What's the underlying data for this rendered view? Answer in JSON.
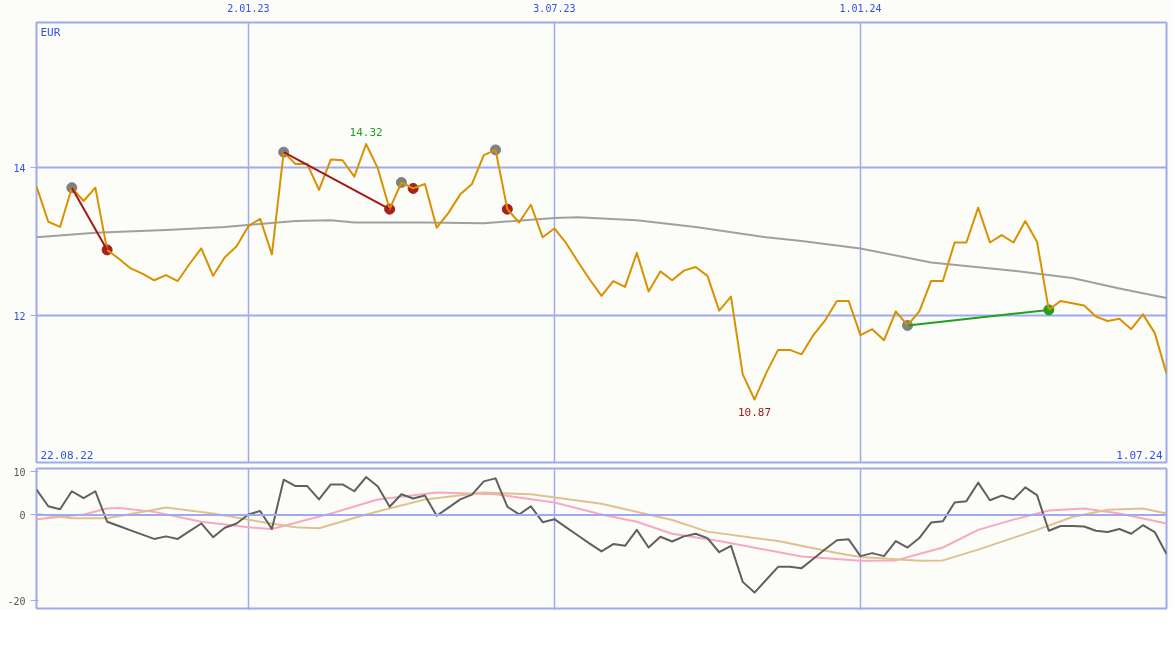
{
  "chart_data": [
    {
      "type": "line",
      "xlim": [
        "2022-08-29",
        "2024-07-01"
      ],
      "ylim": [
        10.02,
        15.96
      ],
      "xticks": [
        {
          "value": "2023-01-02",
          "label": "2.01.23"
        },
        {
          "value": "2023-07-03",
          "label": "3.07.23"
        },
        {
          "value": "2024-01-01",
          "label": "1.01.24"
        }
      ],
      "yticks": [
        14,
        12
      ],
      "grid": true,
      "x": [
        "2022-08-29",
        "2022-09-05",
        "2022-09-12",
        "2022-09-19",
        "2022-09-26",
        "2022-10-03",
        "2022-10-10",
        "2022-10-17",
        "2022-10-24",
        "2022-10-31",
        "2022-11-07",
        "2022-11-14",
        "2022-11-21",
        "2022-11-28",
        "2022-12-05",
        "2022-12-12",
        "2022-12-19",
        "2022-12-26",
        "2023-01-02",
        "2023-01-09",
        "2023-01-16",
        "2023-01-23",
        "2023-01-30",
        "2023-02-06",
        "2023-02-13",
        "2023-02-20",
        "2023-02-27",
        "2023-03-06",
        "2023-03-13",
        "2023-03-20",
        "2023-03-27",
        "2023-04-03",
        "2023-04-10",
        "2023-04-17",
        "2023-04-24",
        "2023-05-01",
        "2023-05-08",
        "2023-05-15",
        "2023-05-22",
        "2023-05-29",
        "2023-06-05",
        "2023-06-12",
        "2023-06-19",
        "2023-06-26",
        "2023-07-03",
        "2023-07-10",
        "2023-07-17",
        "2023-07-24",
        "2023-07-31",
        "2023-08-07",
        "2023-08-14",
        "2023-08-21",
        "2023-08-28",
        "2023-09-04",
        "2023-09-11",
        "2023-09-18",
        "2023-09-25",
        "2023-10-02",
        "2023-10-09",
        "2023-10-16",
        "2023-10-23",
        "2023-10-30",
        "2023-11-06",
        "2023-11-13",
        "2023-11-20",
        "2023-11-27",
        "2023-12-04",
        "2023-12-11",
        "2023-12-18",
        "2023-12-25",
        "2024-01-01",
        "2024-01-08",
        "2024-01-15",
        "2024-01-22",
        "2024-01-29",
        "2024-02-05",
        "2024-02-12",
        "2024-02-19",
        "2024-02-26",
        "2024-03-04",
        "2024-03-11",
        "2024-03-18",
        "2024-03-25",
        "2024-04-01",
        "2024-04-08",
        "2024-04-15",
        "2024-04-22",
        "2024-04-29",
        "2024-05-06",
        "2024-05-13",
        "2024-05-20",
        "2024-05-27",
        "2024-06-03",
        "2024-06-10",
        "2024-06-17",
        "2024-06-24",
        "2024-07-01"
      ],
      "series": [
        {
          "color": "#a0a0a0",
          "x": [
            "2022-08-29",
            "2022-10-03",
            "2022-11-14",
            "2022-12-19",
            "2023-01-30",
            "2023-02-20",
            "2023-03-06",
            "2023-04-17",
            "2023-05-22",
            "2023-07-03",
            "2023-07-17",
            "2023-08-21",
            "2023-09-25",
            "2023-11-06",
            "2023-11-27",
            "2024-01-01",
            "2024-02-12",
            "2024-04-01",
            "2024-05-06",
            "2024-06-03",
            "2024-07-01"
          ],
          "values": [
            13.06,
            13.12,
            13.16,
            13.2,
            13.28,
            13.29,
            13.26,
            13.26,
            13.25,
            13.32,
            13.33,
            13.29,
            13.2,
            13.06,
            13.01,
            12.91,
            12.72,
            12.61,
            12.51,
            12.37,
            12.24
          ]
        },
        {
          "color": "#d99100",
          "values": [
            13.75,
            13.27,
            13.2,
            13.73,
            13.55,
            13.73,
            12.89,
            12.77,
            12.64,
            12.57,
            12.48,
            12.55,
            12.47,
            12.7,
            12.91,
            12.54,
            12.79,
            12.94,
            13.21,
            13.31,
            12.83,
            14.21,
            14.05,
            14.05,
            13.7,
            14.11,
            14.1,
            13.88,
            14.32,
            13.99,
            13.44,
            13.8,
            13.72,
            13.78,
            13.19,
            13.39,
            13.64,
            13.78,
            14.17,
            14.24,
            13.44,
            13.26,
            13.5,
            13.06,
            13.18,
            12.98,
            12.73,
            12.49,
            12.27,
            12.47,
            12.39,
            12.85,
            12.33,
            12.6,
            12.48,
            12.61,
            12.66,
            12.54,
            12.07,
            12.26,
            11.21,
            10.87,
            11.23,
            11.54,
            11.54,
            11.48,
            11.74,
            11.94,
            12.2,
            12.2,
            11.74,
            11.82,
            11.67,
            12.06,
            11.87,
            12.06,
            12.47,
            12.47,
            12.99,
            12.99,
            13.46,
            12.99,
            13.09,
            12.99,
            13.28,
            13.0,
            12.08,
            12.2,
            12.17,
            12.14,
            11.99,
            11.93,
            11.96,
            11.82,
            12.02,
            11.77,
            11.22
          ]
        },
        {
          "color": "#a01818",
          "x": [
            "2022-09-19",
            "2022-10-10"
          ],
          "values": [
            13.73,
            12.89
          ]
        },
        {
          "color": "#a01818",
          "x": [
            "2023-01-23",
            "2023-03-27"
          ],
          "values": [
            14.21,
            13.44
          ]
        },
        {
          "color": "#20a020",
          "x": [
            "2024-01-29",
            "2024-04-22"
          ],
          "values": [
            11.87,
            12.08
          ]
        },
        {
          "type": "scatter",
          "marker": "circle",
          "color": "#808080",
          "x": [
            "2022-09-19",
            "2023-01-23",
            "2023-04-03",
            "2023-05-29",
            "2024-01-29"
          ],
          "values": [
            13.73,
            14.21,
            13.8,
            14.24,
            11.87
          ]
        },
        {
          "type": "scatter",
          "marker": "circle",
          "color": "#a52020",
          "x": [
            "2022-10-10",
            "2023-03-27",
            "2023-04-10",
            "2023-06-05"
          ],
          "values": [
            12.89,
            13.44,
            13.72,
            13.44
          ]
        },
        {
          "type": "scatter",
          "marker": "circle",
          "color": "#20a020",
          "x": [
            "2024-04-22"
          ],
          "values": [
            12.08
          ]
        }
      ],
      "annotations": [
        "EUR",
        "22.08.22",
        "1.07.24",
        {
          "text": "14.32",
          "x": "2023-03-13",
          "y": 14.32
        },
        {
          "text": "10.87",
          "x": "2023-10-30",
          "y": 10.87
        }
      ]
    },
    {
      "type": "line",
      "xlim": [
        "2022-08-29",
        "2024-07-01"
      ],
      "ylim": [
        -21.8,
        10.8
      ],
      "xticks": [
        {
          "value": "2023-01-02",
          "label": null
        },
        {
          "value": "2023-07-03",
          "label": null
        },
        {
          "value": "2024-01-01",
          "label": null
        }
      ],
      "yticks": [
        10,
        0,
        -20
      ],
      "grid": "x",
      "tick_labels": "y",
      "ref_lines": [
        {
          "axis": "y",
          "value": 0,
          "color": "#a0aaf0"
        }
      ],
      "x": [
        "2022-08-29",
        "2022-09-05",
        "2022-09-12",
        "2022-09-19",
        "2022-09-26",
        "2022-10-03",
        "2022-10-10",
        "2022-10-17",
        "2022-10-24",
        "2022-10-31",
        "2022-11-07",
        "2022-11-14",
        "2022-11-21",
        "2022-11-28",
        "2022-12-05",
        "2022-12-12",
        "2022-12-19",
        "2022-12-26",
        "2023-01-02",
        "2023-01-09",
        "2023-01-16",
        "2023-01-23",
        "2023-01-30",
        "2023-02-06",
        "2023-02-13",
        "2023-02-20",
        "2023-02-27",
        "2023-03-06",
        "2023-03-13",
        "2023-03-20",
        "2023-03-27",
        "2023-04-03",
        "2023-04-10",
        "2023-04-17",
        "2023-04-24",
        "2023-05-01",
        "2023-05-08",
        "2023-05-15",
        "2023-05-22",
        "2023-05-29",
        "2023-06-05",
        "2023-06-12",
        "2023-06-19",
        "2023-06-26",
        "2023-07-03",
        "2023-07-10",
        "2023-07-17",
        "2023-07-24",
        "2023-07-31",
        "2023-08-07",
        "2023-08-14",
        "2023-08-21",
        "2023-08-28",
        "2023-09-04",
        "2023-09-11",
        "2023-09-18",
        "2023-09-25",
        "2023-10-02",
        "2023-10-09",
        "2023-10-16",
        "2023-10-23",
        "2023-10-30",
        "2023-11-06",
        "2023-11-13",
        "2023-11-20",
        "2023-11-27",
        "2023-12-04",
        "2023-12-11",
        "2023-12-18",
        "2023-12-25",
        "2024-01-01",
        "2024-01-08",
        "2024-01-15",
        "2024-01-22",
        "2024-01-29",
        "2024-02-05",
        "2024-02-12",
        "2024-02-19",
        "2024-02-26",
        "2024-03-04",
        "2024-03-11",
        "2024-03-18",
        "2024-03-25",
        "2024-04-01",
        "2024-04-08",
        "2024-04-15",
        "2024-04-22",
        "2024-04-29",
        "2024-05-06",
        "2024-05-13",
        "2024-05-20",
        "2024-05-27",
        "2024-06-03",
        "2024-06-10",
        "2024-06-17",
        "2024-06-24",
        "2024-07-01"
      ],
      "series": [
        {
          "color": "#f8a8c0",
          "x": [
            "2022-08-29",
            "2022-09-26",
            "2022-10-10",
            "2022-10-17",
            "2022-11-07",
            "2022-12-05",
            "2023-01-02",
            "2023-01-16",
            "2023-02-20",
            "2023-03-20",
            "2023-04-24",
            "2023-05-29",
            "2023-07-03",
            "2023-07-31",
            "2023-08-21",
            "2023-09-11",
            "2023-10-09",
            "2023-11-27",
            "2024-01-01",
            "2024-01-22",
            "2024-02-19",
            "2024-03-11",
            "2024-04-01",
            "2024-04-22",
            "2024-05-13",
            "2024-06-03",
            "2024-07-01"
          ],
          "values": [
            -1.0,
            0.1,
            1.5,
            1.6,
            0.7,
            -1.6,
            -2.9,
            -3.3,
            0.3,
            3.6,
            5.2,
            4.8,
            2.9,
            0.1,
            -1.6,
            -4.4,
            -6.1,
            -9.7,
            -10.7,
            -10.6,
            -7.6,
            -3.5,
            -1.1,
            1.0,
            1.5,
            0.3,
            -2.0
          ]
        },
        {
          "color": "#e0c090",
          "x": [
            "2022-08-29",
            "2022-09-19",
            "2022-10-10",
            "2022-11-14",
            "2022-12-12",
            "2023-01-09",
            "2023-01-30",
            "2023-02-13",
            "2023-03-13",
            "2023-04-17",
            "2023-05-22",
            "2023-06-19",
            "2023-07-31",
            "2023-09-11",
            "2023-10-02",
            "2023-11-13",
            "2023-12-18",
            "2024-01-01",
            "2024-02-05",
            "2024-02-19",
            "2024-03-11",
            "2024-04-15",
            "2024-05-06",
            "2024-05-27",
            "2024-06-17",
            "2024-07-01"
          ],
          "values": [
            0.2,
            -0.8,
            -0.8,
            1.7,
            0.3,
            -1.6,
            -2.9,
            -3.1,
            0.1,
            3.6,
            5.2,
            4.8,
            2.6,
            -1.2,
            -3.9,
            -6.1,
            -8.9,
            -9.8,
            -10.7,
            -10.6,
            -8.1,
            -3.5,
            -0.5,
            1.2,
            1.5,
            0.3
          ]
        },
        {
          "color": "#606060",
          "values": [
            5.9,
            2.0,
            1.3,
            5.5,
            3.9,
            5.5,
            -1.6,
            -2.6,
            -3.6,
            -4.6,
            -5.6,
            -5.0,
            -5.6,
            -3.8,
            -2.0,
            -5.2,
            -3.0,
            -2.0,
            0.1,
            0.9,
            -3.3,
            8.2,
            6.7,
            6.7,
            3.6,
            7.1,
            7.1,
            5.5,
            8.8,
            6.6,
            1.9,
            4.8,
            3.8,
            4.5,
            -0.2,
            1.7,
            3.6,
            4.7,
            7.8,
            8.5,
            1.9,
            0.1,
            2.0,
            -1.7,
            -1.0,
            -2.9,
            -4.8,
            -6.7,
            -8.5,
            -6.8,
            -7.2,
            -3.5,
            -7.6,
            -5.1,
            -6.2,
            -5.0,
            -4.4,
            -5.4,
            -8.7,
            -7.2,
            -15.6,
            -18.1,
            -15.1,
            -12.1,
            -12.1,
            -12.4,
            -10.2,
            -8.0,
            -5.9,
            -5.7,
            -9.6,
            -8.9,
            -9.6,
            -6.1,
            -7.6,
            -5.4,
            -1.8,
            -1.5,
            2.9,
            3.2,
            7.5,
            3.4,
            4.5,
            3.6,
            6.4,
            4.6,
            -3.7,
            -2.6,
            -2.6,
            -2.7,
            -3.7,
            -4.0,
            -3.3,
            -4.4,
            -2.4,
            -4.0,
            -9.1
          ]
        }
      ]
    }
  ]
}
